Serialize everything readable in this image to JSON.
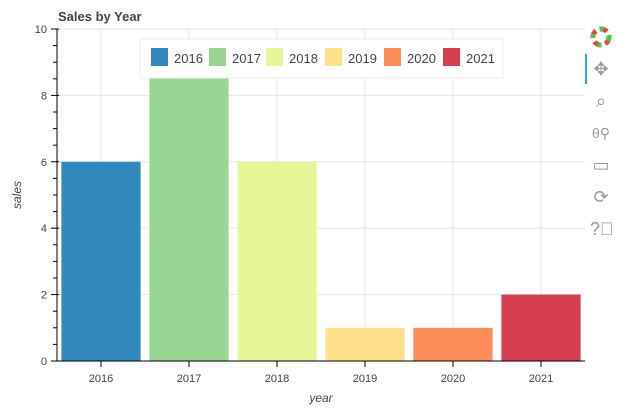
{
  "chart_data": {
    "type": "bar",
    "title": "Sales by Year",
    "xlabel": "year",
    "ylabel": "sales",
    "categories": [
      "2016",
      "2017",
      "2018",
      "2019",
      "2020",
      "2021"
    ],
    "values": [
      6,
      9,
      6,
      1,
      1,
      2
    ],
    "colors": [
      "#3288bd",
      "#99d594",
      "#e6f598",
      "#fee08b",
      "#fc8d59",
      "#d53e4f"
    ],
    "ylim": [
      0,
      10
    ],
    "yticks": [
      0,
      2,
      4,
      6,
      8,
      10
    ],
    "grid": true,
    "legend": {
      "placement": "top-center",
      "orientation": "horizontal",
      "entries": [
        "2016",
        "2017",
        "2018",
        "2019",
        "2020",
        "2021"
      ]
    }
  },
  "toolbar": {
    "tools": [
      "bokeh-logo-icon",
      "pan-icon",
      "box-zoom-icon",
      "wheel-zoom-icon",
      "save-icon",
      "reset-icon",
      "help-icon"
    ],
    "accent": "#26aae1"
  }
}
